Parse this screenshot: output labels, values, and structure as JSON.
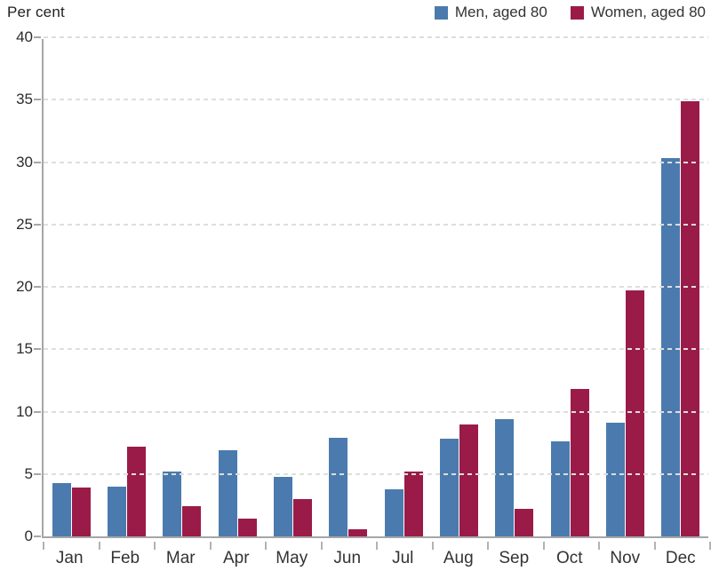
{
  "chart_data": {
    "type": "bar",
    "title": "",
    "ylabel": "Per cent",
    "xlabel": "",
    "categories": [
      "Jan",
      "Feb",
      "Mar",
      "Apr",
      "May",
      "Jun",
      "Jul",
      "Aug",
      "Sep",
      "Oct",
      "Nov",
      "Dec"
    ],
    "series": [
      {
        "name": "Men, aged 80",
        "color": "#4B7BAE",
        "values": [
          4.3,
          4.0,
          5.2,
          6.9,
          4.8,
          7.9,
          3.8,
          7.8,
          9.4,
          7.6,
          9.1,
          30.3
        ]
      },
      {
        "name": "Women, aged 80",
        "color": "#9B1B48",
        "values": [
          3.9,
          7.2,
          2.4,
          1.4,
          3.0,
          0.6,
          5.2,
          9.0,
          2.2,
          11.8,
          19.7,
          34.9
        ]
      }
    ],
    "ylim": [
      0,
      40
    ],
    "yticks": [
      0,
      5,
      10,
      15,
      20,
      25,
      30,
      35,
      40
    ],
    "grid": "horizontal-dashed",
    "legend_position": "top-right",
    "colors": {
      "axis": "#a6a6a6",
      "gridline": "#dedede",
      "tick_label": "#2b2b2b",
      "category_label": "#333333"
    }
  }
}
